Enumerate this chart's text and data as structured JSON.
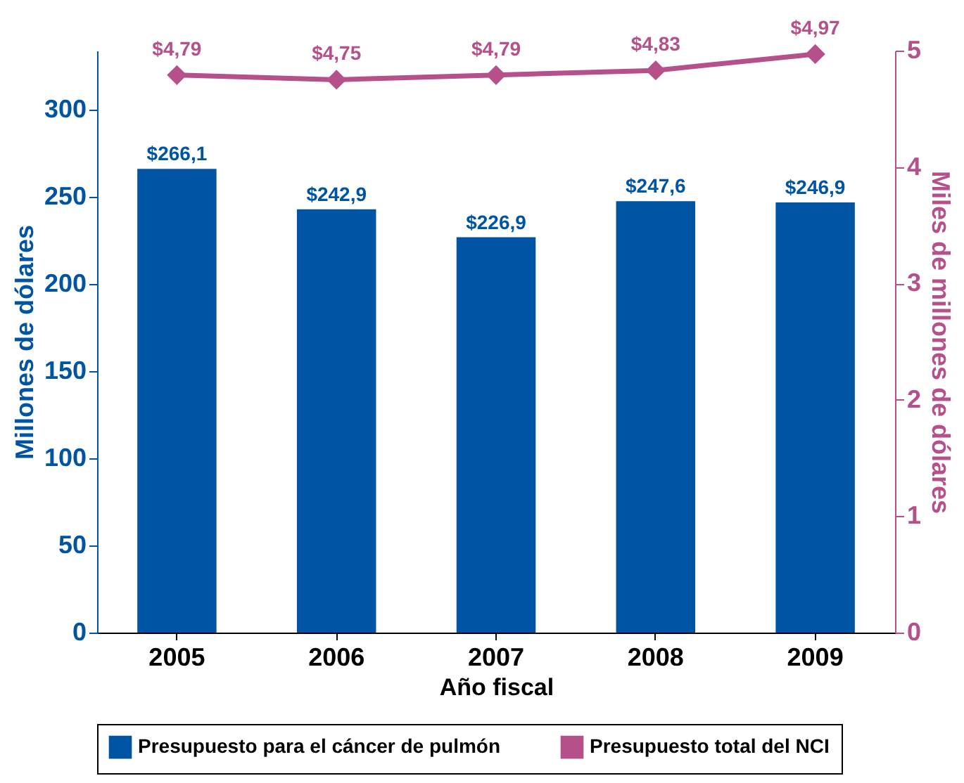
{
  "chart_data": {
    "type": "bar",
    "xlabel": "Año fiscal",
    "ylabel": "Millones de dólares",
    "y2label": "Miles de millones de dólares",
    "categories": [
      "2005",
      "2006",
      "2007",
      "2008",
      "2009"
    ],
    "series": [
      {
        "name": "Presupuesto para el cáncer de pulmón",
        "color": "#0054a4",
        "values": [
          266.1,
          242.9,
          226.9,
          247.6,
          246.9
        ],
        "value_labels": [
          "$266,1",
          "$242,9",
          "$226,9",
          "$247,6",
          "$246,9"
        ]
      },
      {
        "name": "Presupuesto total del NCI",
        "type": "line",
        "axis": "y2",
        "color": "#b5508a",
        "values": [
          4.79,
          4.75,
          4.79,
          4.83,
          4.97
        ],
        "value_labels": [
          "$4,79",
          "$4,75",
          "$4,79",
          "$4,83",
          "$4,97"
        ]
      }
    ],
    "ylim": [
      0,
      334
    ],
    "yticks": [
      0,
      50,
      100,
      150,
      200,
      250,
      300
    ],
    "y2lim": [
      0,
      5
    ],
    "y2ticks": [
      0,
      1,
      2,
      3,
      4,
      5
    ],
    "marker": "diamond",
    "legend": "bottom",
    "grid": false
  }
}
